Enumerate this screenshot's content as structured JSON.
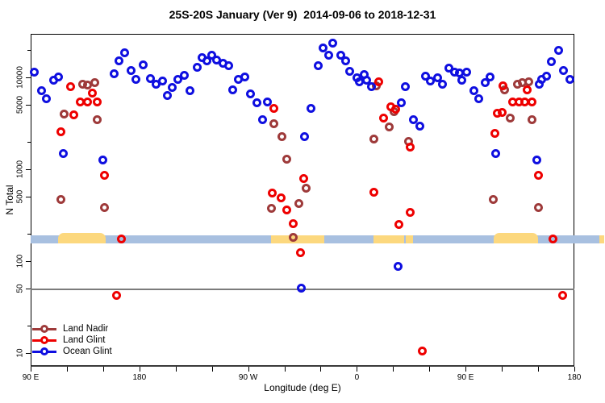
{
  "chart_data": {
    "type": "scatter",
    "title": "25S-20S January (Ver 9)  2014-09-06 to 2018-12-31",
    "xlabel": "Longitude (deg E)",
    "ylabel": "N Total",
    "x_axis": {
      "range": [
        90,
        540
      ],
      "minor_tick_step_deg": 30,
      "major_ticks": [
        {
          "label": "90 E",
          "lon": 90
        },
        {
          "label": "180",
          "lon": 180
        },
        {
          "label": "90 W",
          "lon": 270
        },
        {
          "label": "0",
          "lon": 360
        },
        {
          "label": "90 E",
          "lon": 450
        },
        {
          "label": "180",
          "lon": 540
        }
      ]
    },
    "y_axis": {
      "scale": "log",
      "range": [
        7,
        30000
      ],
      "major_ticks": [
        {
          "label": "10000",
          "value": 10000
        },
        {
          "label": "5000",
          "value": 5000
        },
        {
          "label": "1000",
          "value": 1000
        },
        {
          "label": "500",
          "value": 500
        },
        {
          "label": "100",
          "value": 100
        },
        {
          "label": "50",
          "value": 50
        },
        {
          "label": "10",
          "value": 10
        }
      ],
      "minor_tick_values": [
        20000,
        2000,
        200,
        20
      ]
    },
    "reference_line": {
      "value": 50,
      "color": "#7b7b7b"
    },
    "land_ocean_band": {
      "description": "map strip of 25S-20S latitude band: ocean blue, land yellow",
      "center_value": 174,
      "lon_range": [
        90,
        565
      ],
      "ocean_color": "#a8c0e0",
      "land_color": "#fcd87e",
      "land_segments": [
        {
          "from": 113,
          "to": 152,
          "raised": true
        },
        {
          "from": 289,
          "to": 333,
          "raised": false
        },
        {
          "from": 374,
          "to": 399,
          "raised": false
        },
        {
          "from": 400.5,
          "to": 406.5,
          "raised": false
        },
        {
          "from": 473,
          "to": 510,
          "raised": true
        },
        {
          "from": 561,
          "to": 565,
          "raised": false
        }
      ]
    },
    "legend": {
      "position": "bottom-left"
    },
    "series": [
      {
        "name": "Land Nadir",
        "color": "#9e3a3a",
        "points": [
          [
            133,
            8500
          ],
          [
            137,
            8300
          ],
          [
            143,
            8700
          ],
          [
            118,
            3970
          ],
          [
            145,
            3430
          ],
          [
            115,
            465
          ],
          [
            151,
            386
          ],
          [
            291,
            3160
          ],
          [
            298,
            2250
          ],
          [
            302,
            1280
          ],
          [
            318,
            617
          ],
          [
            312,
            428
          ],
          [
            289,
            376
          ],
          [
            307,
            181
          ],
          [
            376,
            8100
          ],
          [
            391,
            4230
          ],
          [
            387,
            2880
          ],
          [
            374,
            2130
          ],
          [
            403,
            2000
          ],
          [
            482,
            7300
          ],
          [
            493,
            8500
          ],
          [
            497,
            8700
          ],
          [
            502,
            9000
          ],
          [
            487,
            3570
          ],
          [
            505,
            3430
          ],
          [
            473,
            473
          ],
          [
            510,
            386
          ]
        ]
      },
      {
        "name": "Land Glint",
        "color": "#ee0000",
        "points": [
          [
            123,
            7850
          ],
          [
            131,
            5450
          ],
          [
            137,
            5450
          ],
          [
            141,
            6800
          ],
          [
            145,
            5350
          ],
          [
            126,
            3880
          ],
          [
            115,
            2580
          ],
          [
            151,
            851
          ],
          [
            165,
            176
          ],
          [
            161,
            42
          ],
          [
            291,
            4640
          ],
          [
            316,
            789
          ],
          [
            290,
            546
          ],
          [
            297,
            490
          ],
          [
            302,
            360
          ],
          [
            307,
            255
          ],
          [
            313,
            124
          ],
          [
            378,
            9000
          ],
          [
            382,
            3570
          ],
          [
            388,
            4740
          ],
          [
            392,
            4540
          ],
          [
            404,
            1730
          ],
          [
            374,
            566
          ],
          [
            404,
            340
          ],
          [
            395,
            250
          ],
          [
            414,
            10.6
          ],
          [
            474,
            2440
          ],
          [
            476,
            4030
          ],
          [
            480,
            4120
          ],
          [
            481,
            8100
          ],
          [
            489,
            5350
          ],
          [
            494,
            5350
          ],
          [
            499,
            5450
          ],
          [
            501,
            7240
          ],
          [
            505,
            5350
          ],
          [
            510,
            851
          ],
          [
            522,
            176
          ],
          [
            530,
            42
          ]
        ]
      },
      {
        "name": "Ocean Glint",
        "color": "#0f0fe0",
        "points": [
          [
            93,
            11400
          ],
          [
            99,
            7100
          ],
          [
            103,
            5800
          ],
          [
            109,
            9400
          ],
          [
            113,
            10200
          ],
          [
            117,
            1470
          ],
          [
            150,
            1250
          ],
          [
            159,
            10900
          ],
          [
            163,
            15000
          ],
          [
            168,
            18700
          ],
          [
            173,
            11900
          ],
          [
            177,
            9600
          ],
          [
            183,
            13800
          ],
          [
            189,
            9800
          ],
          [
            194,
            8500
          ],
          [
            199,
            9200
          ],
          [
            203,
            6400
          ],
          [
            207,
            7700
          ],
          [
            212,
            9600
          ],
          [
            217,
            10600
          ],
          [
            222,
            7100
          ],
          [
            228,
            13000
          ],
          [
            232,
            16300
          ],
          [
            236,
            15000
          ],
          [
            240,
            17300
          ],
          [
            244,
            15300
          ],
          [
            249,
            14100
          ],
          [
            254,
            13500
          ],
          [
            257,
            7250
          ],
          [
            262,
            9600
          ],
          [
            267,
            10200
          ],
          [
            272,
            6550
          ],
          [
            277,
            5250
          ],
          [
            282,
            3430
          ],
          [
            286,
            5350
          ],
          [
            317,
            2250
          ],
          [
            314,
            51
          ],
          [
            322,
            4640
          ],
          [
            328,
            13300
          ],
          [
            332,
            20700
          ],
          [
            337,
            17300
          ],
          [
            340,
            23400
          ],
          [
            347,
            17600
          ],
          [
            351,
            15000
          ],
          [
            354,
            11750
          ],
          [
            360,
            10000
          ],
          [
            362,
            9000
          ],
          [
            366,
            10800
          ],
          [
            368,
            9400
          ],
          [
            372,
            7850
          ],
          [
            394,
            87
          ],
          [
            397,
            5250
          ],
          [
            400,
            7850
          ],
          [
            407,
            3430
          ],
          [
            412,
            2930
          ],
          [
            417,
            10400
          ],
          [
            421,
            9200
          ],
          [
            427,
            10000
          ],
          [
            431,
            8500
          ],
          [
            436,
            12500
          ],
          [
            441,
            11500
          ],
          [
            445,
            11100
          ],
          [
            447,
            9400
          ],
          [
            451,
            11300
          ],
          [
            457,
            7100
          ],
          [
            461,
            5800
          ],
          [
            466,
            8700
          ],
          [
            470,
            10200
          ],
          [
            475,
            1470
          ],
          [
            509,
            1250
          ],
          [
            511,
            8500
          ],
          [
            513,
            9600
          ],
          [
            517,
            10400
          ],
          [
            521,
            14700
          ],
          [
            527,
            19500
          ],
          [
            531,
            11900
          ],
          [
            536,
            9600
          ]
        ]
      }
    ]
  }
}
